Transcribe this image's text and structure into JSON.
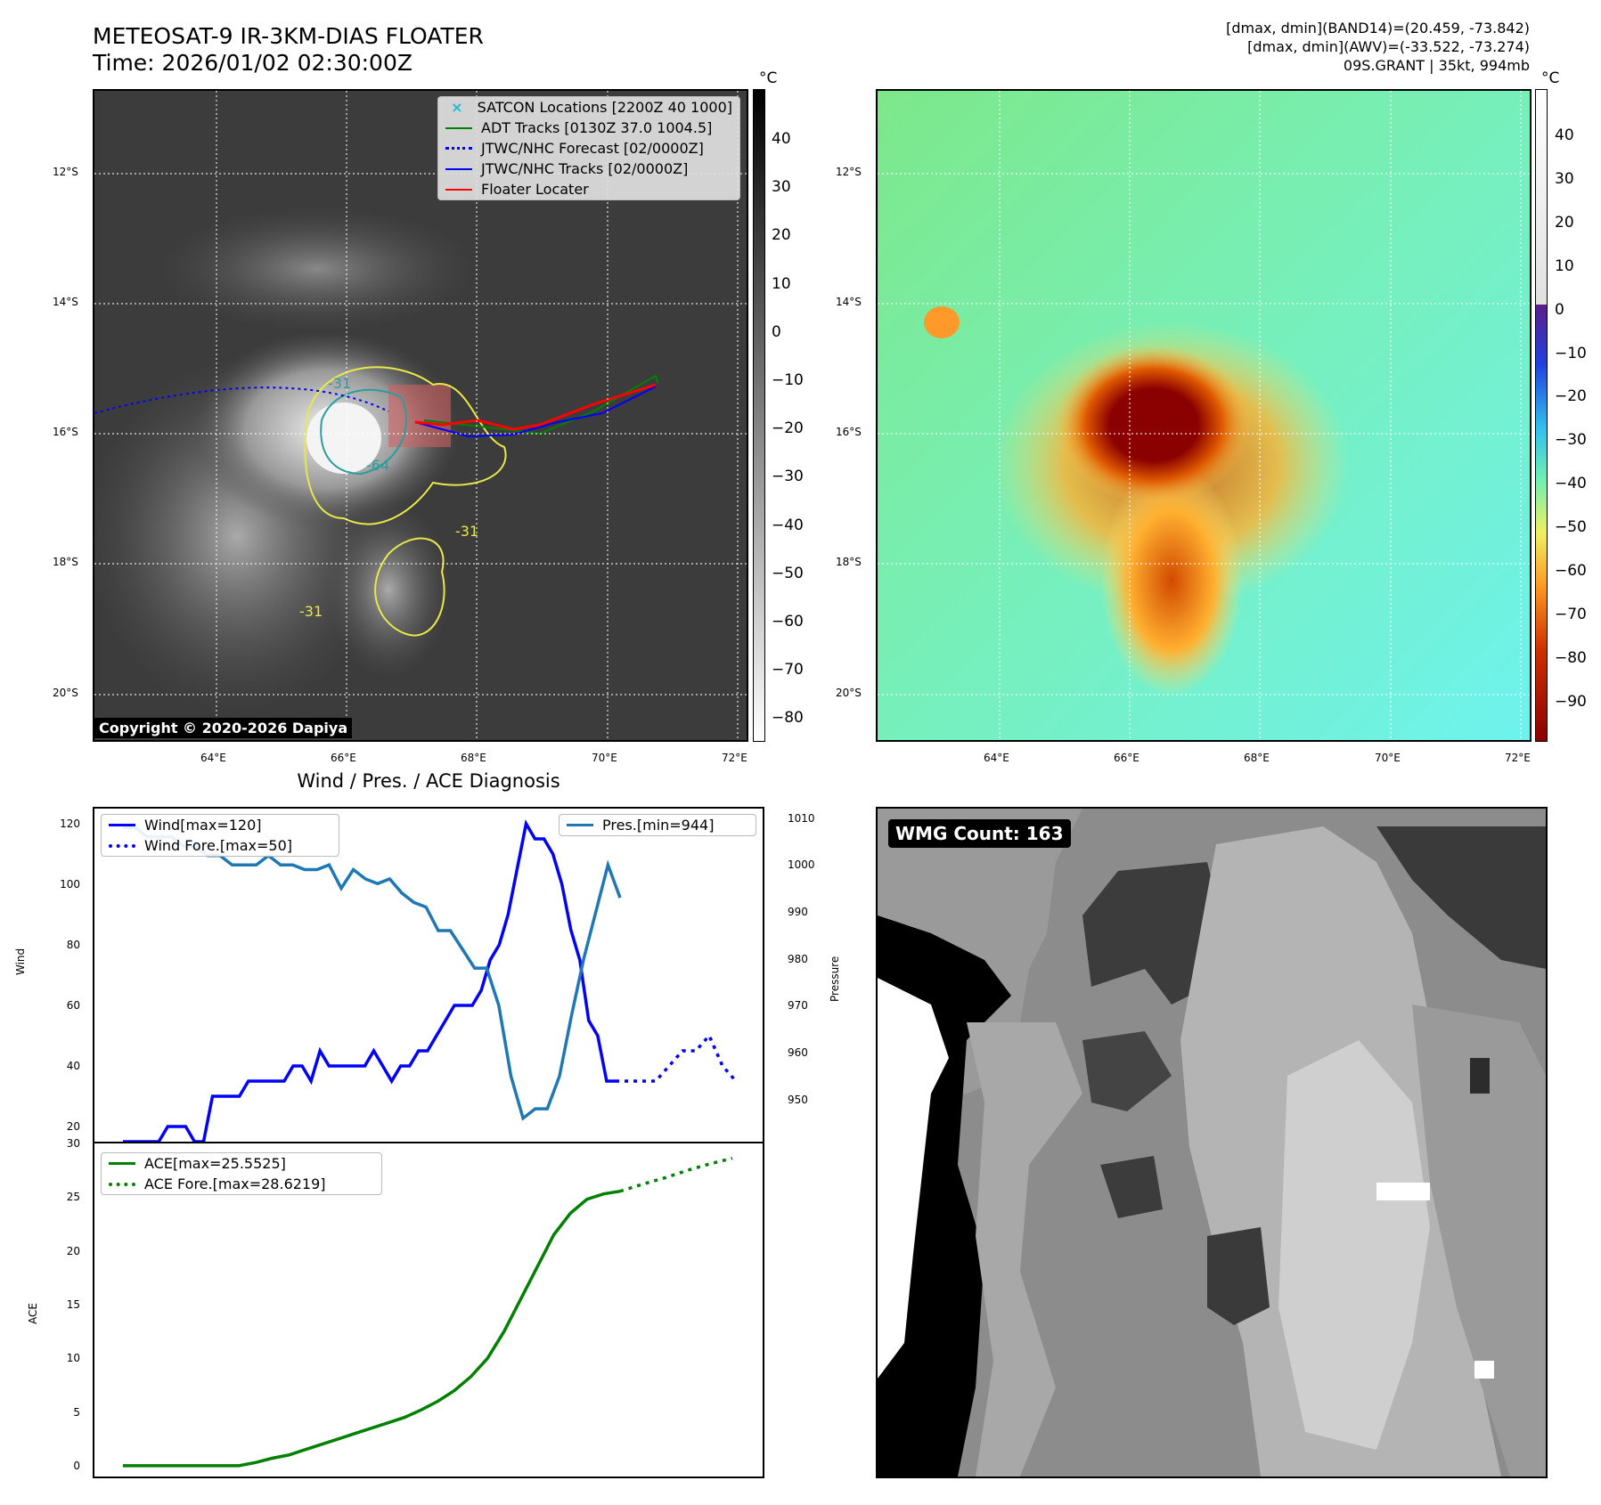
{
  "header": {
    "title_line1": "METEOSAT-9 IR-3KM-DIAS FLOATER",
    "title_line2": "Time: 2026/01/02 02:30:00Z",
    "right_line1": "[dmax, dmin](BAND14)=(20.459, -73.842)",
    "right_line2": "[dmax, dmin](AWV)=(-33.522, -73.274)",
    "right_line3": "09S.GRANT | 35kt, 994mb"
  },
  "map": {
    "lat_labels": [
      "12°S",
      "14°S",
      "16°S",
      "18°S",
      "20°S"
    ],
    "lon_labels": [
      "64°E",
      "66°E",
      "68°E",
      "70°E",
      "72°E"
    ],
    "copyright": "Copyright © 2020-2026 Dapiya",
    "contour_labels": [
      "-31",
      "-64",
      "-31",
      "-31"
    ],
    "legend": [
      {
        "label": "SATCON Locations [2200Z 40 1000]",
        "color": "#17becf",
        "style": "x"
      },
      {
        "label": "ADT Tracks [0130Z 37.0 1004.5]",
        "color": "#008000",
        "style": "solid"
      },
      {
        "label": "JTWC/NHC Forecast [02/0000Z]",
        "color": "#0000ff",
        "style": "dotted"
      },
      {
        "label": "JTWC/NHC Tracks [02/0000Z]",
        "color": "#0000ff",
        "style": "marker"
      },
      {
        "label": "Floater Locater",
        "color": "#ff0000",
        "style": "solid"
      }
    ]
  },
  "colorbar_ir": {
    "unit": "°C",
    "ticks": [
      "40",
      "30",
      "20",
      "10",
      "0",
      "−10",
      "−20",
      "−30",
      "−40",
      "−50",
      "−60",
      "−70",
      "−80"
    ]
  },
  "colorbar_awv": {
    "unit": "°C",
    "ticks": [
      "40",
      "30",
      "20",
      "10",
      "0",
      "−10",
      "−20",
      "−30",
      "−40",
      "−50",
      "−60",
      "−70",
      "−80",
      "−90"
    ]
  },
  "diag": {
    "title": "Wind / Pres. / ACE Diagnosis",
    "wind_ylabel": "Wind",
    "pres_ylabel": "Pressure",
    "ace_ylabel": "ACE",
    "wind_ticks": [
      "120",
      "100",
      "80",
      "60",
      "40",
      "20"
    ],
    "pres_ticks": [
      "1010",
      "1000",
      "990",
      "980",
      "970",
      "960",
      "950"
    ],
    "ace_ticks": [
      "30",
      "25",
      "20",
      "15",
      "10",
      "5",
      "0"
    ],
    "legend_wind": "Wind[max=120]",
    "legend_windfore": "Wind Fore.[max=50]",
    "legend_pres": "Pres.[min=944]",
    "legend_ace": "ACE[max=25.5525]",
    "legend_acefore": "ACE Fore.[max=28.6219]"
  },
  "wmg": {
    "label": "WMG Count: 163"
  },
  "chart_data": [
    {
      "type": "line",
      "title": "Wind / Pres. / ACE Diagnosis",
      "ylabel": "Wind",
      "ylim": [
        15,
        125
      ],
      "series": [
        {
          "name": "Wind[max=120]",
          "color": "#0000ff",
          "values": [
            15,
            15,
            15,
            15,
            15,
            20,
            20,
            20,
            15,
            15,
            30,
            30,
            30,
            30,
            35,
            35,
            35,
            35,
            35,
            40,
            40,
            35,
            45,
            40,
            40,
            40,
            40,
            40,
            45,
            40,
            35,
            40,
            40,
            45,
            45,
            50,
            55,
            60,
            60,
            60,
            65,
            75,
            80,
            90,
            105,
            120,
            115,
            115,
            110,
            100,
            85,
            75,
            55,
            50,
            35,
            35
          ]
        },
        {
          "name": "Wind Fore.[max=50]",
          "color": "#0000ff",
          "values": [
            35,
            35,
            35,
            35,
            40,
            45,
            45,
            50,
            40,
            35
          ]
        }
      ]
    },
    {
      "type": "line",
      "ylabel": "Pressure",
      "ylim": [
        941,
        1012
      ],
      "series": [
        {
          "name": "Pres.[min=944]",
          "color": "#1f77b4",
          "values": [
            1008,
            1008,
            1006,
            1006,
            1006,
            1004,
            1004,
            1002,
            1002,
            1000,
            1000,
            1000,
            1002,
            1000,
            1000,
            999,
            999,
            1000,
            995,
            999,
            997,
            996,
            997,
            994,
            992,
            991,
            986,
            986,
            982,
            978,
            978,
            970,
            955,
            946,
            948,
            948,
            955,
            968,
            980,
            990,
            1000,
            993
          ]
        }
      ]
    },
    {
      "type": "line",
      "ylabel": "ACE",
      "ylim": [
        -1,
        30
      ],
      "series": [
        {
          "name": "ACE[max=25.5525]",
          "color": "#008000",
          "values": [
            0,
            0,
            0,
            0,
            0,
            0,
            0,
            0,
            0.3,
            0.7,
            1.0,
            1.5,
            2.0,
            2.5,
            3.0,
            3.5,
            4.0,
            4.5,
            5.2,
            6.0,
            7.0,
            8.3,
            10.0,
            12.5,
            15.5,
            18.5,
            21.5,
            23.5,
            24.8,
            25.3,
            25.55
          ]
        },
        {
          "name": "ACE Fore.[max=28.6219]",
          "color": "#008000",
          "values": [
            25.55,
            26.2,
            26.8,
            27.5,
            28.1,
            28.62
          ]
        }
      ]
    }
  ]
}
